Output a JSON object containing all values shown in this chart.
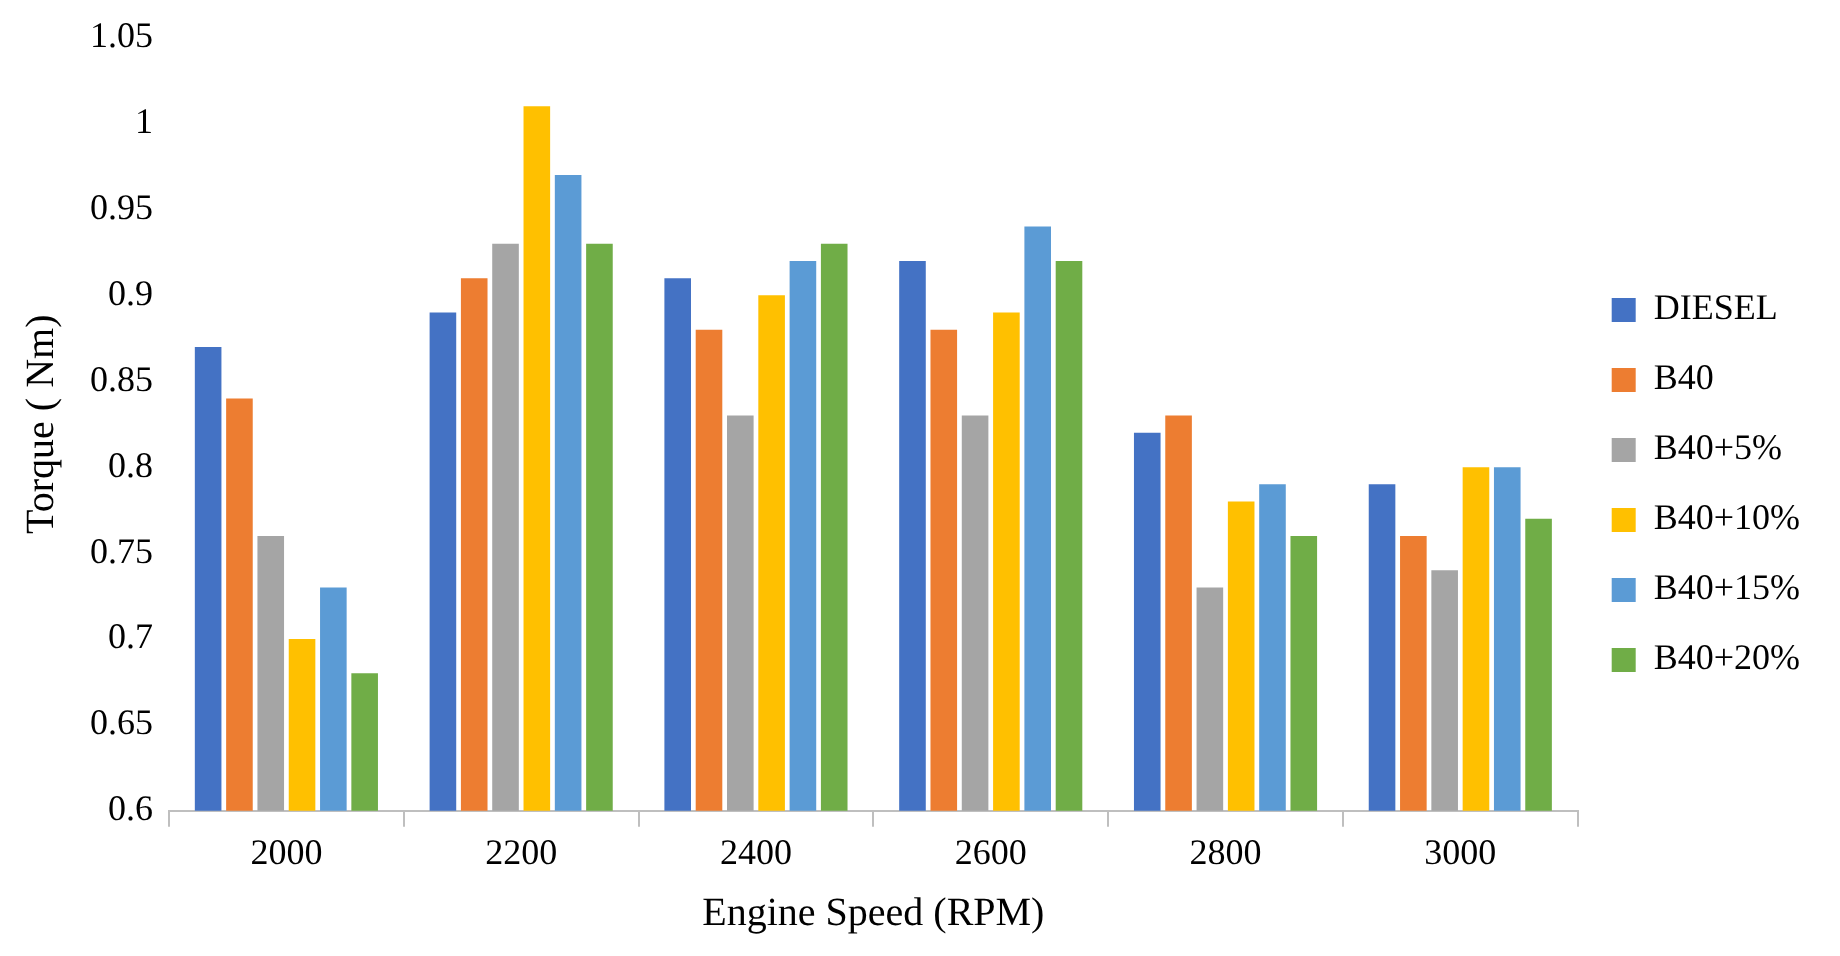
{
  "chart_data": {
    "type": "bar",
    "xlabel": "Engine Speed (RPM)",
    "ylabel": "Torque ( Nm)",
    "categories": [
      "2000",
      "2200",
      "2400",
      "2600",
      "2800",
      "3000"
    ],
    "series": [
      {
        "name": "DIESEL",
        "color": "#4472c4",
        "values": [
          0.87,
          0.89,
          0.91,
          0.92,
          0.82,
          0.79
        ]
      },
      {
        "name": "B40",
        "color": "#ed7d31",
        "values": [
          0.84,
          0.91,
          0.88,
          0.88,
          0.83,
          0.76
        ]
      },
      {
        "name": "B40+5%",
        "color": "#a5a5a5",
        "values": [
          0.76,
          0.93,
          0.83,
          0.83,
          0.73,
          0.74
        ]
      },
      {
        "name": "B40+10%",
        "color": "#ffc000",
        "values": [
          0.7,
          1.01,
          0.9,
          0.89,
          0.78,
          0.8
        ]
      },
      {
        "name": "B40+15%",
        "color": "#5b9bd5",
        "values": [
          0.73,
          0.97,
          0.92,
          0.94,
          0.79,
          0.8
        ]
      },
      {
        "name": "B40+20%",
        "color": "#70ad47",
        "values": [
          0.68,
          0.93,
          0.93,
          0.92,
          0.76,
          0.77
        ]
      }
    ],
    "ylim": [
      0.6,
      1.05
    ],
    "yticks": [
      0.6,
      0.65,
      0.7,
      0.75,
      0.8,
      0.85,
      0.9,
      0.95,
      1,
      1.05
    ],
    "grid": false,
    "legend": "right"
  }
}
